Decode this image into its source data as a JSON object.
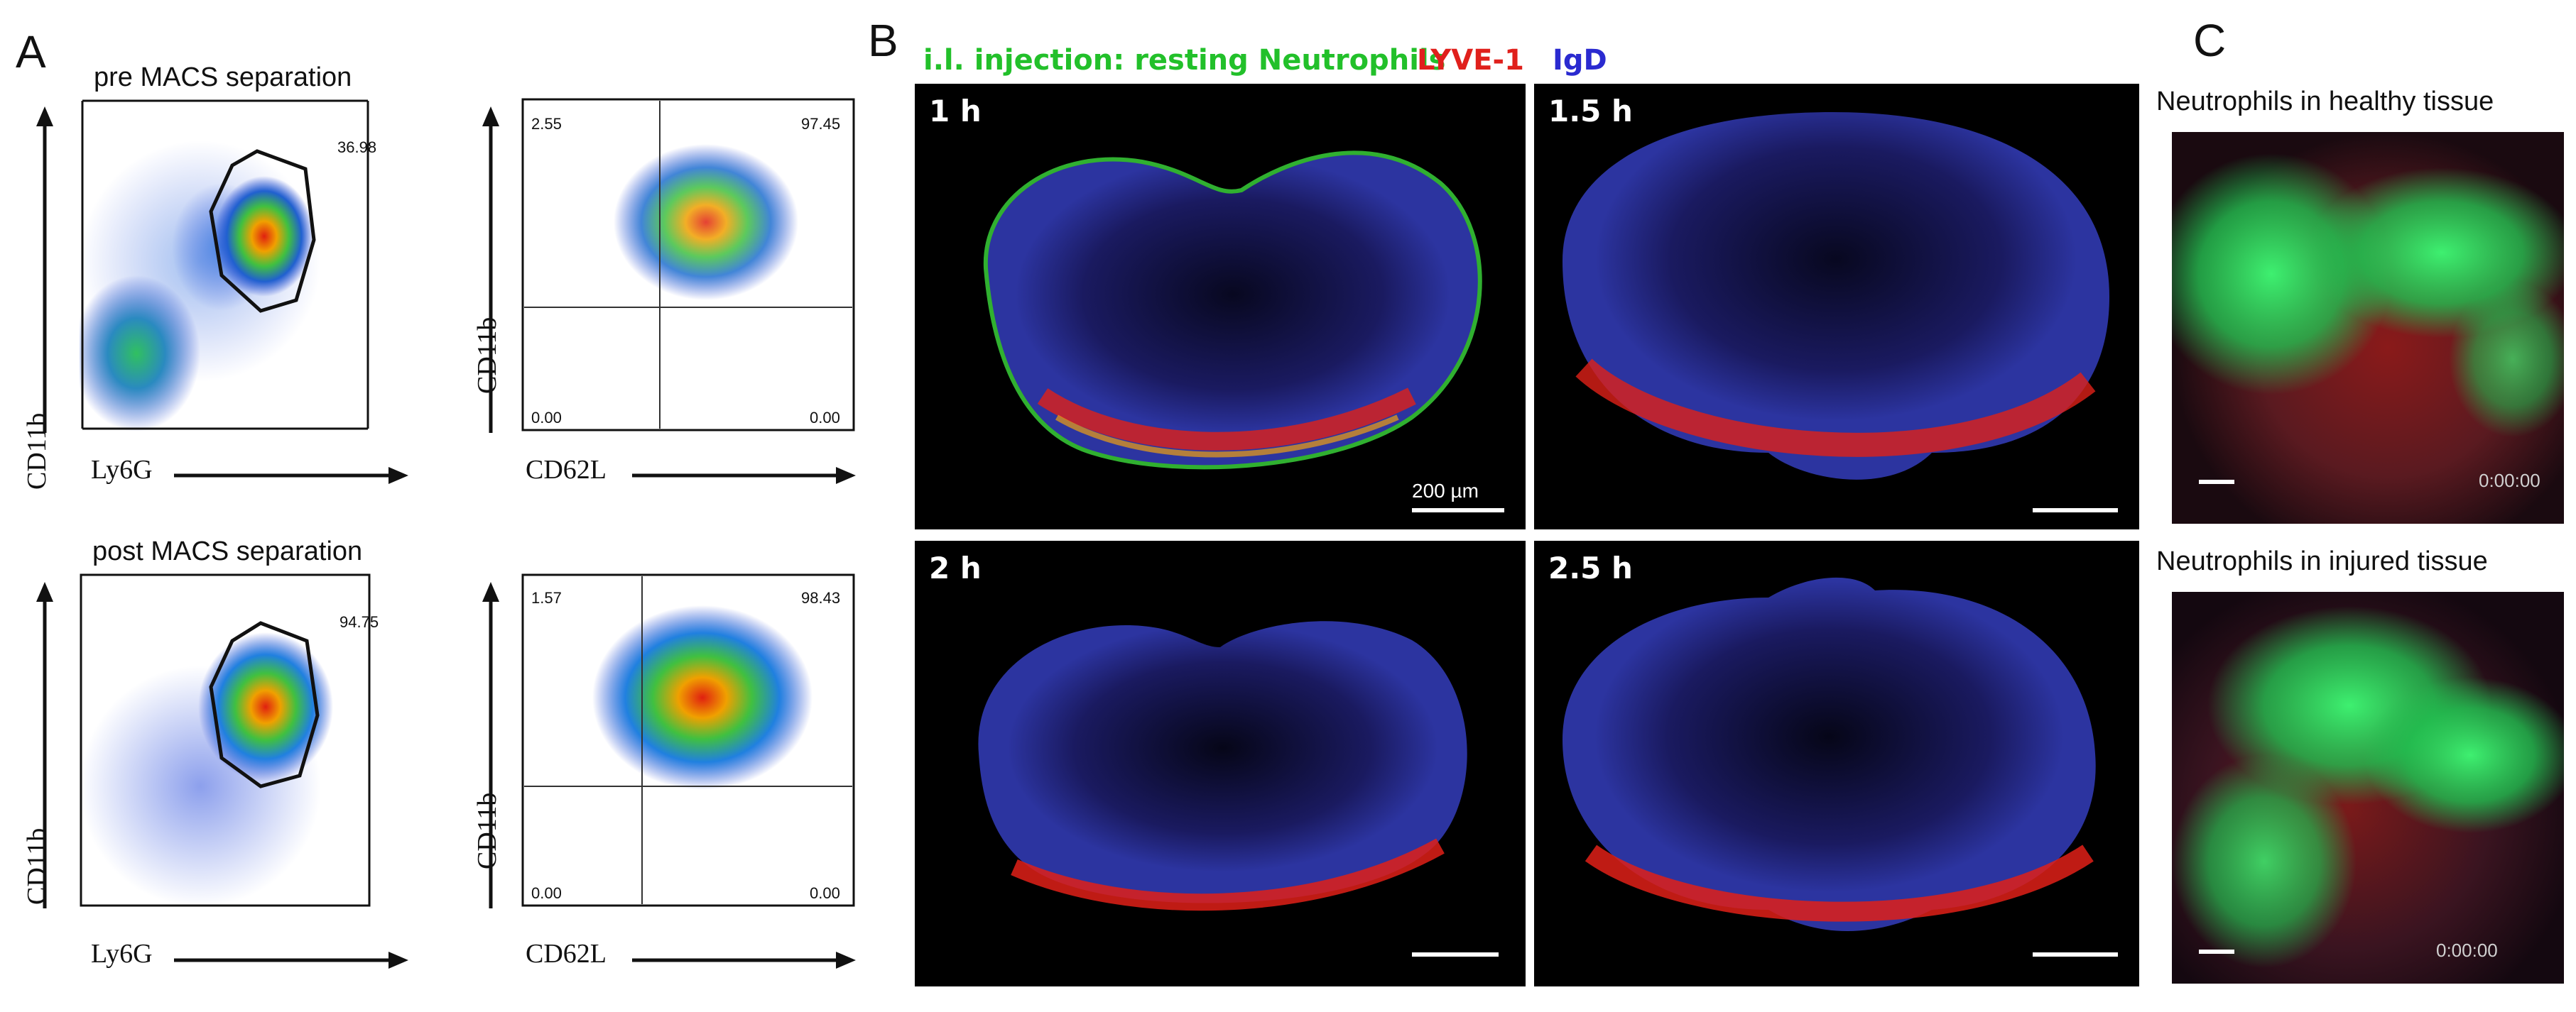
{
  "panel_a": {
    "letter": "A",
    "rows": [
      {
        "title": "pre MACS separation",
        "gate_plot": {
          "xlabel": "Ly6G",
          "ylabel": "CD11b",
          "gate_value": "36.98"
        },
        "quad_plot": {
          "xlabel": "CD62L",
          "ylabel": "CD11b",
          "ul": "2.55",
          "ur": "97.45",
          "ll": "0.00",
          "lr": "0.00"
        }
      },
      {
        "title": "post MACS separation",
        "gate_plot": {
          "xlabel": "Ly6G",
          "ylabel": "CD11b",
          "gate_value": "94.75"
        },
        "quad_plot": {
          "xlabel": "CD62L",
          "ylabel": "CD11b",
          "ul": "1.57",
          "ur": "98.43",
          "ll": "0.00",
          "lr": "0.00"
        }
      }
    ]
  },
  "panel_b": {
    "letter": "B",
    "legend": [
      {
        "text": "i.l. injection: resting Neutrophils",
        "color": "#22c02a"
      },
      {
        "text": "LYVE-1",
        "color": "#e0201c"
      },
      {
        "text": "IgD",
        "color": "#2a2ad0"
      }
    ],
    "images": [
      {
        "time": "1 h",
        "scalebar": "200 µm"
      },
      {
        "time": "1.5 h",
        "scalebar": ""
      },
      {
        "time": "2 h",
        "scalebar": ""
      },
      {
        "time": "2.5 h",
        "scalebar": ""
      }
    ]
  },
  "panel_c": {
    "letter": "C",
    "images": [
      {
        "title": "Neutrophils in healthy tissue",
        "timestamp": "0:00:00"
      },
      {
        "title": "Neutrophils in injured tissue",
        "timestamp": "0:00:00"
      }
    ]
  }
}
